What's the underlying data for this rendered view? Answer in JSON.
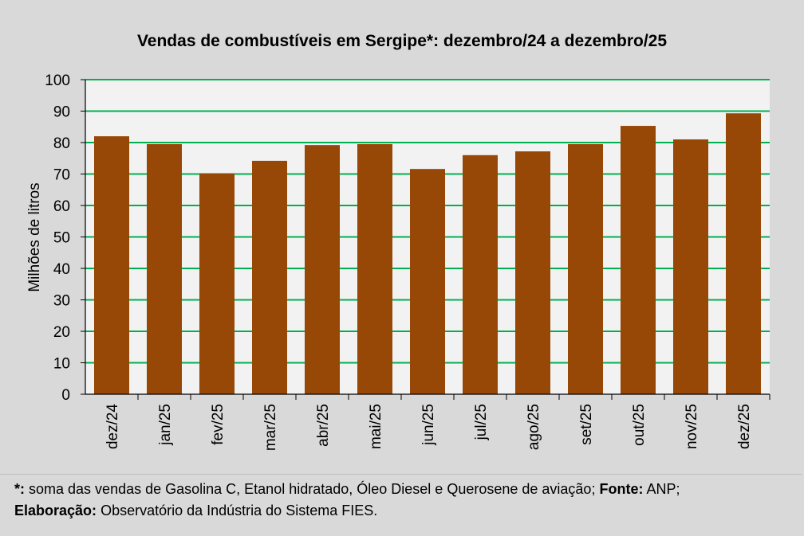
{
  "chart_data": {
    "type": "bar",
    "title": "Vendas de combustíveis em Sergipe*: dezembro/24 a dezembro/25",
    "xlabel": "",
    "ylabel": "Milhões de litros",
    "ylim": [
      0,
      100
    ],
    "yticks": [
      "0",
      "10",
      "20",
      "30",
      "40",
      "50",
      "60",
      "70",
      "80",
      "90",
      "100"
    ],
    "categories": [
      "dez/24",
      "jan/25",
      "fev/25",
      "mar/25",
      "abr/25",
      "mai/25",
      "jun/25",
      "jul/25",
      "ago/25",
      "set/25",
      "out/25",
      "nov/25",
      "dez/25"
    ],
    "values": [
      82.0,
      79.5,
      70.2,
      74.2,
      79.2,
      79.5,
      71.6,
      76.0,
      77.2,
      79.5,
      85.3,
      81.0,
      89.3
    ],
    "grid": true,
    "legend": "none"
  },
  "colors": {
    "bar": "#974706",
    "grid": "#00b050",
    "plot_background": "#f2f2f2",
    "page_background": "#d9d9d9"
  },
  "footnote": {
    "line1_label": "*:",
    "line1_text": "soma das vendas de Gasolina C, Etanol hidratado, Óleo Diesel e Querosene de aviação;",
    "line1_source_label": "Fonte:",
    "line1_source_text": "ANP;",
    "line2_label": "Elaboração:",
    "line2_text": "Observatório da Indústria do Sistema FIES."
  }
}
